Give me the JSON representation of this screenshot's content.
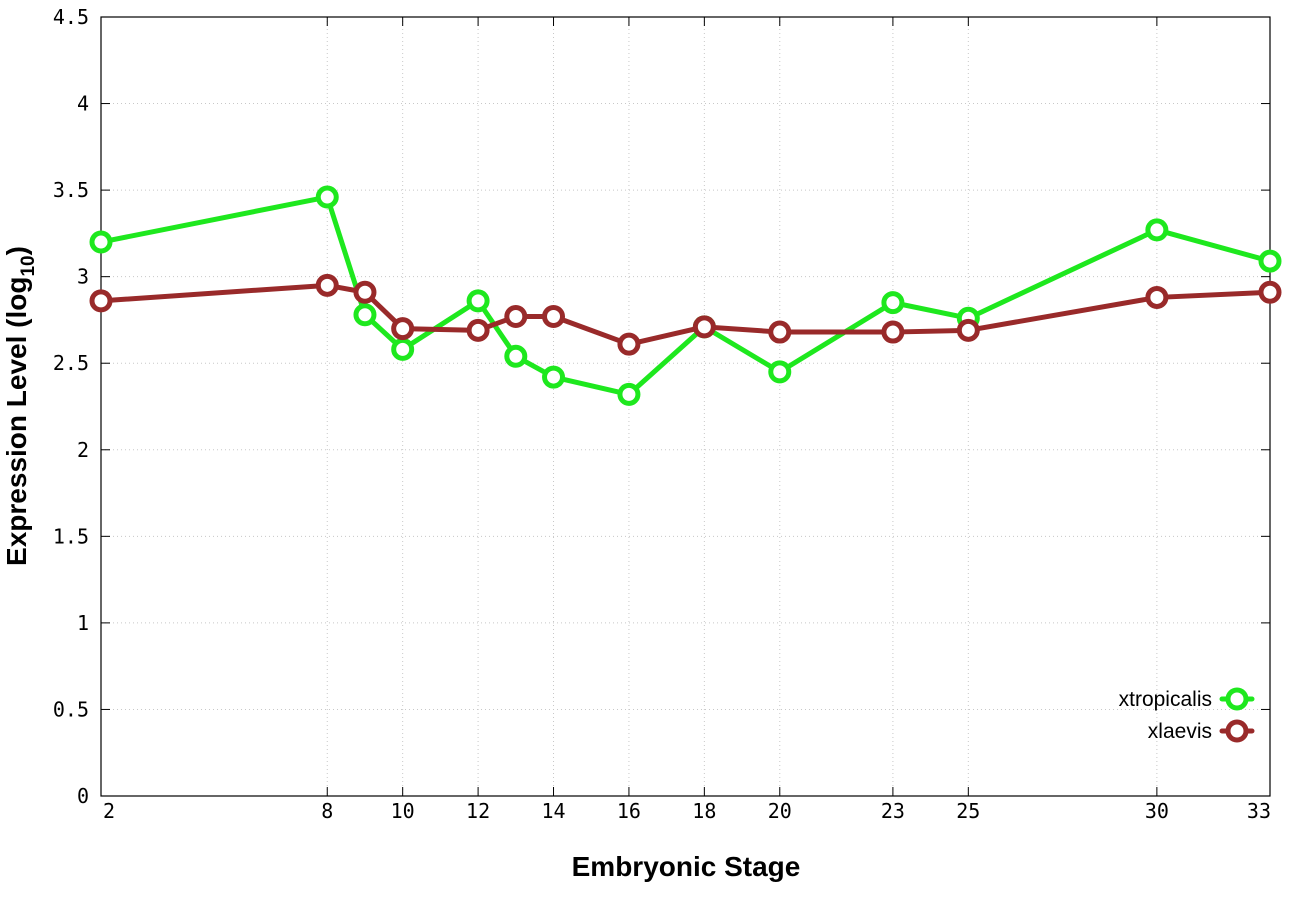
{
  "chart_data": {
    "type": "line",
    "title": "",
    "xlabel": "Embryonic Stage",
    "ylabel_main": "Expression Level (log",
    "ylabel_sub": "10",
    "ylabel_end": ")",
    "x": [
      2,
      8,
      9,
      10,
      12,
      13,
      14,
      16,
      18,
      20,
      23,
      25,
      30,
      33
    ],
    "x_tick_labels": [
      "2",
      "8",
      "10",
      "12",
      "14",
      "16",
      "18",
      "20",
      "23",
      "25",
      "30",
      "33"
    ],
    "y_tick_labels": [
      "0",
      "0.5",
      "1",
      "1.5",
      "2",
      "2.5",
      "3",
      "3.5",
      "4",
      "4.5"
    ],
    "xlim": [
      2,
      33
    ],
    "ylim": [
      0,
      4.5
    ],
    "grid": true,
    "legend_position": "bottom-right",
    "series": [
      {
        "name": "xtropicalis",
        "color": "#1ee81e",
        "values": [
          3.2,
          3.46,
          2.78,
          2.58,
          2.86,
          2.54,
          2.42,
          2.32,
          2.71,
          2.45,
          2.85,
          2.76,
          3.27,
          3.09
        ]
      },
      {
        "name": "xlaevis",
        "color": "#992a2a",
        "values": [
          2.86,
          2.95,
          2.91,
          2.7,
          2.69,
          2.77,
          2.77,
          2.61,
          2.71,
          2.68,
          2.68,
          2.69,
          2.88,
          2.91
        ]
      }
    ]
  }
}
